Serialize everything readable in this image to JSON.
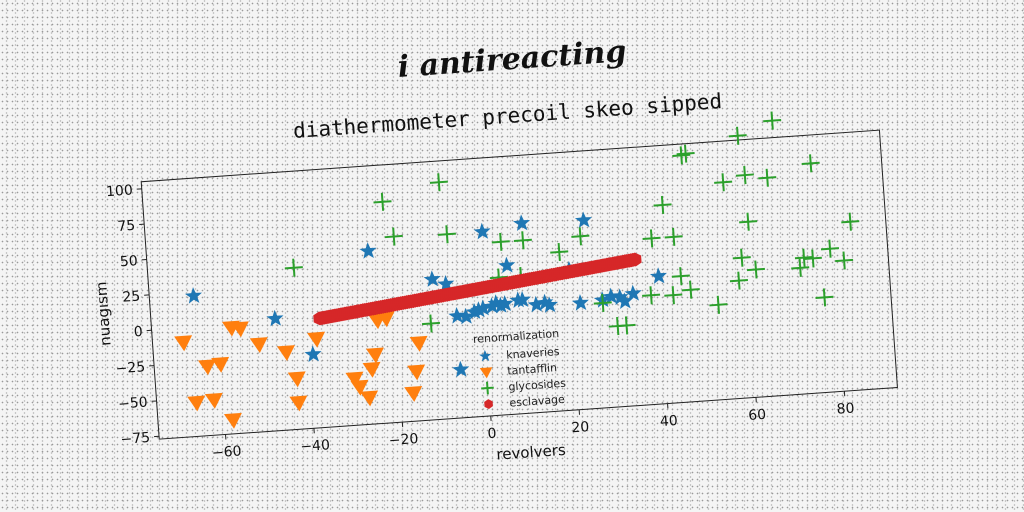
{
  "heading": "i antireacting",
  "chart_data": {
    "type": "scatter",
    "title": "diathermometer precoil skeo sipped",
    "xlabel": "revolvers",
    "ylabel": "nuagism",
    "xlim": [
      -75,
      92
    ],
    "ylim": [
      -77,
      105
    ],
    "xticks": [
      -60,
      -40,
      -20,
      0,
      20,
      40,
      60,
      80
    ],
    "yticks": [
      -75,
      -50,
      -25,
      0,
      25,
      50,
      75,
      100
    ],
    "grid": false,
    "legend_title": "renormalization",
    "legend_placement": "lower-center",
    "series": [
      {
        "name": "knaveries",
        "marker": "star",
        "color": "#1f77b4",
        "points": [
          [
            -65,
            22
          ],
          [
            -47,
            2
          ],
          [
            -39,
            -25
          ],
          [
            -25,
            45
          ],
          [
            -11,
            22
          ],
          [
            -8,
            18
          ],
          [
            -6,
            -5
          ],
          [
            -4,
            -6
          ],
          [
            -2,
            -3
          ],
          [
            -1,
            -2
          ],
          [
            0,
            -1
          ],
          [
            1,
            53
          ],
          [
            2,
            0
          ],
          [
            3,
            2
          ],
          [
            4,
            0
          ],
          [
            5,
            1
          ],
          [
            6,
            28
          ],
          [
            8,
            3
          ],
          [
            9,
            3
          ],
          [
            10,
            57
          ],
          [
            12,
            -1
          ],
          [
            14,
            0
          ],
          [
            15,
            -2
          ],
          [
            20,
            22
          ],
          [
            22,
            -2
          ],
          [
            24,
            56
          ],
          [
            27,
            -1
          ],
          [
            29,
            1
          ],
          [
            31,
            0
          ],
          [
            32,
            -3
          ],
          [
            34,
            2
          ],
          [
            -6,
            -43
          ],
          [
            40,
            13
          ]
        ]
      },
      {
        "name": "tantafflin",
        "marker": "triangle-down",
        "color": "#ff7f0e",
        "points": [
          [
            -68,
            -10
          ],
          [
            -66,
            -53
          ],
          [
            -63,
            -28
          ],
          [
            -62,
            -52
          ],
          [
            -60,
            -27
          ],
          [
            -58,
            -67
          ],
          [
            -57,
            -2
          ],
          [
            -55,
            -3
          ],
          [
            -51,
            -15
          ],
          [
            -45,
            -22
          ],
          [
            -43,
            -41
          ],
          [
            -43,
            -58
          ],
          [
            -38,
            -14
          ],
          [
            -30,
            -44
          ],
          [
            -29,
            -50
          ],
          [
            -27,
            -58
          ],
          [
            -26,
            -38
          ],
          [
            -25,
            -28
          ],
          [
            -24,
            -4
          ],
          [
            -22,
            -3
          ],
          [
            -17,
            -57
          ],
          [
            -16,
            -42
          ],
          [
            -15,
            -22
          ]
        ]
      },
      {
        "name": "glycosides",
        "marker": "plus",
        "color": "#2ca02c",
        "points": [
          [
            -42,
            37
          ],
          [
            -21,
            79
          ],
          [
            -19,
            54
          ],
          [
            -12,
            -9
          ],
          [
            -8,
            90
          ],
          [
            -7,
            53
          ],
          [
            4,
            20
          ],
          [
            5,
            45
          ],
          [
            9,
            20
          ],
          [
            10,
            45
          ],
          [
            18,
            35
          ],
          [
            23,
            45
          ],
          [
            27,
            -3
          ],
          [
            30,
            -20
          ],
          [
            32,
            -20
          ],
          [
            38,
            0
          ],
          [
            39,
            40
          ],
          [
            42,
            63
          ],
          [
            43,
            -1
          ],
          [
            44,
            40
          ],
          [
            45,
            12
          ],
          [
            47,
            2
          ],
          [
            47,
            97
          ],
          [
            48,
            98
          ],
          [
            53,
            -10
          ],
          [
            56,
            76
          ],
          [
            58,
            6
          ],
          [
            59,
            22
          ],
          [
            60,
            108
          ],
          [
            61,
            47
          ],
          [
            61,
            80
          ],
          [
            62,
            13
          ],
          [
            66,
            77
          ],
          [
            68,
            117
          ],
          [
            72,
            12
          ],
          [
            73,
            19
          ],
          [
            75,
            18
          ],
          [
            76,
            85
          ],
          [
            77,
            -10
          ],
          [
            79,
            24
          ],
          [
            82,
            15
          ],
          [
            84,
            42
          ]
        ]
      },
      {
        "name": "esclavage",
        "marker": "hexagon",
        "color": "#d62728",
        "line": {
          "from": [
            -37,
            0
          ],
          "to": [
            35,
            26
          ],
          "count": 160
        }
      }
    ]
  }
}
